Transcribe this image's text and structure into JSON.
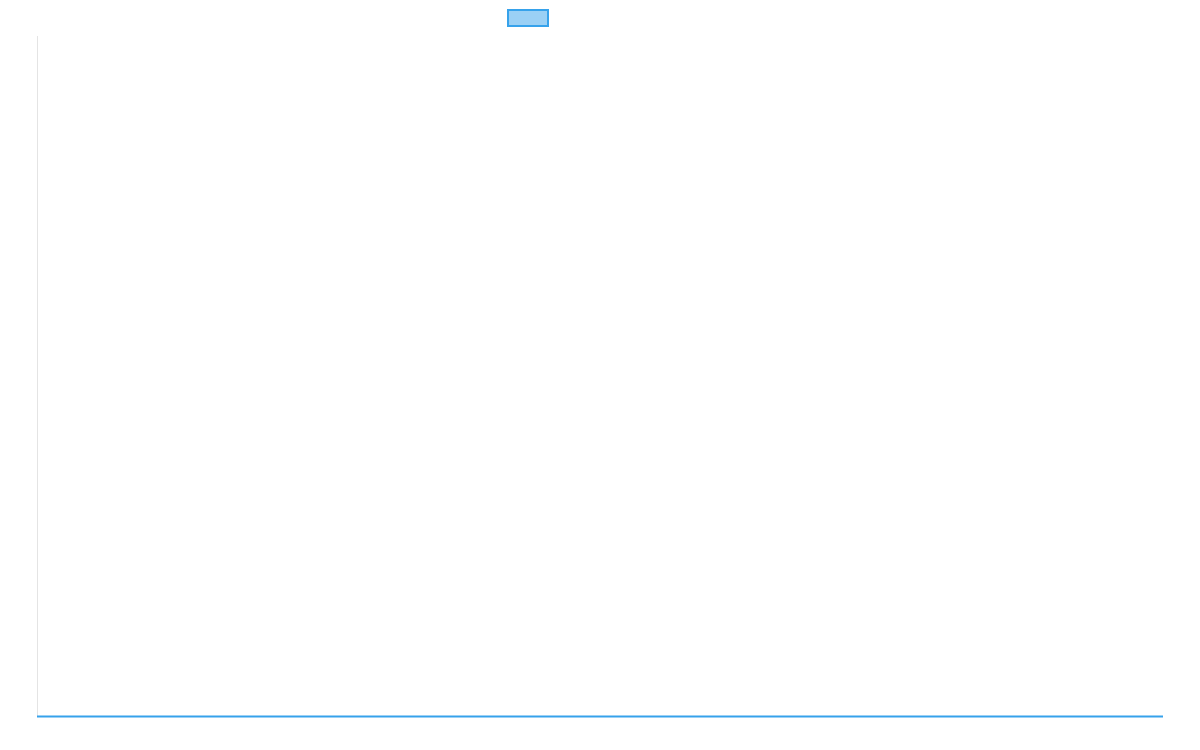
{
  "chart_data": {
    "type": "line",
    "title": "",
    "xlabel": "",
    "ylabel": "",
    "grid": false,
    "legend": "top",
    "series": [
      {
        "color": "#36a2eb",
        "fill": "#9ad0f5",
        "values": []
      }
    ]
  }
}
